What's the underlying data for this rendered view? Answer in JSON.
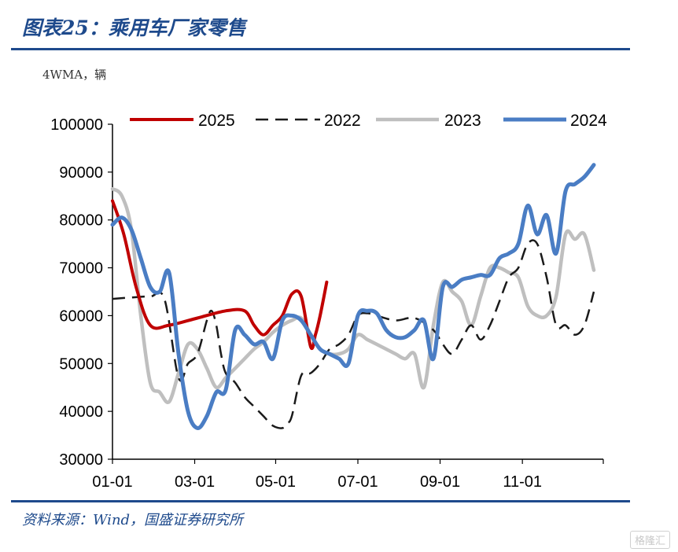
{
  "header": {
    "title": "图表25：乘用车厂家零售"
  },
  "unit_label": "4WMA，辆",
  "source": "资料来源：Wind，国盛证券研究所",
  "watermark": "格隆汇",
  "chart_data": {
    "type": "line",
    "title": "乘用车厂家零售",
    "ylim": [
      30000,
      100000
    ],
    "yticks": [
      30000,
      40000,
      50000,
      60000,
      70000,
      80000,
      90000,
      100000
    ],
    "ytick_labels": [
      "30000",
      "40000",
      "50000",
      "60000",
      "70000",
      "80000",
      "90000",
      "100000"
    ],
    "xlim": [
      1,
      53
    ],
    "xticks": [
      1,
      9.71,
      18.29,
      27,
      35.71,
      44.43
    ],
    "xtick_labels": [
      "01-01",
      "03-01",
      "05-01",
      "07-01",
      "09-01",
      "11-01"
    ],
    "grid": false,
    "legend": "top",
    "legend_order": [
      "2025",
      "2022",
      "2023",
      "2024"
    ],
    "series": [
      {
        "name": "2025",
        "color": "#c00000",
        "dash": "solid",
        "width": 4,
        "x": [
          1,
          2.2,
          3.5,
          5,
          7,
          10,
          13,
          15,
          16,
          17,
          18,
          19,
          20,
          21,
          22,
          22.5,
          23,
          23.7
        ],
        "y": [
          84000,
          77000,
          66000,
          58000,
          58000,
          59500,
          61000,
          61000,
          58000,
          56000,
          58000,
          60000,
          64500,
          64000,
          53500,
          56000,
          60000,
          67000
        ]
      },
      {
        "name": "2022",
        "color": "#1a1a1a",
        "dash": "dash",
        "width": 2.5,
        "x": [
          1,
          3,
          5,
          6.5,
          8,
          9,
          10,
          11,
          11.5,
          12,
          12.5,
          13,
          14,
          15,
          16,
          17,
          18,
          19,
          19.5,
          20,
          21,
          22,
          23,
          24,
          25,
          26,
          27,
          28,
          29,
          31,
          33,
          35,
          36,
          37,
          38,
          39,
          40,
          41,
          42,
          43,
          44,
          45,
          46,
          47,
          48,
          49,
          50,
          51,
          52
        ],
        "y": [
          63500,
          63800,
          64000,
          63500,
          47000,
          50000,
          52000,
          59000,
          61000,
          58000,
          52000,
          48000,
          46000,
          43000,
          41000,
          39000,
          37000,
          36500,
          37500,
          39000,
          47500,
          48000,
          50000,
          53000,
          54000,
          56000,
          60000,
          60500,
          60000,
          59000,
          59500,
          57000,
          54000,
          52000,
          55000,
          58000,
          55000,
          58000,
          63000,
          68000,
          70000,
          75000,
          75000,
          68000,
          58000,
          58000,
          56000,
          58000,
          65000
        ]
      },
      {
        "name": "2023",
        "color": "#bfbfbf",
        "dash": "solid",
        "width": 4.5,
        "x": [
          1,
          2,
          3,
          4,
          5,
          6,
          7,
          8,
          9,
          10,
          11,
          12,
          13,
          14,
          15,
          16,
          17,
          18,
          19,
          20,
          21,
          22,
          23,
          24,
          25,
          26,
          27,
          28,
          29,
          30,
          31,
          32,
          33,
          34,
          35,
          36,
          37,
          38,
          39,
          40,
          41,
          42,
          43,
          44,
          45,
          46,
          47,
          48,
          49,
          50,
          51,
          52
        ],
        "y": [
          86500,
          85000,
          78000,
          60000,
          46000,
          44000,
          42000,
          48000,
          54000,
          53000,
          49000,
          45000,
          47000,
          49000,
          51000,
          53000,
          54500,
          56500,
          58000,
          59000,
          59500,
          56000,
          53000,
          52000,
          52000,
          53000,
          56000,
          55000,
          54000,
          53000,
          52000,
          51000,
          52000,
          45000,
          58000,
          67000,
          65000,
          63000,
          58000,
          64000,
          70000,
          70000,
          69000,
          68000,
          62000,
          60000,
          60000,
          64000,
          77000,
          76000,
          77000,
          69500
        ]
      },
      {
        "name": "2024",
        "color": "#4a7dc4",
        "dash": "solid",
        "width": 5,
        "x": [
          1,
          2,
          3,
          4,
          5,
          6,
          7,
          8,
          9,
          10,
          11,
          12,
          13,
          14,
          15,
          16,
          17,
          18,
          19,
          20,
          21,
          22,
          23,
          24,
          25,
          26,
          27,
          28,
          29,
          30,
          31,
          32,
          33,
          34,
          35,
          36,
          37,
          38,
          39,
          40,
          41,
          42,
          43,
          44,
          45,
          46,
          47,
          48,
          49,
          50,
          51,
          52
        ],
        "y": [
          79000,
          80500,
          78000,
          72000,
          66000,
          65000,
          69000,
          52000,
          40000,
          36500,
          39000,
          44000,
          44500,
          57000,
          56000,
          54000,
          54500,
          51000,
          59000,
          60000,
          59000,
          56000,
          53000,
          52000,
          51000,
          50000,
          60000,
          61000,
          60500,
          57000,
          55500,
          55500,
          57000,
          59000,
          51000,
          66000,
          66000,
          67500,
          68000,
          68500,
          68500,
          72000,
          73000,
          75000,
          83000,
          77000,
          81000,
          73000,
          86000,
          87500,
          89000,
          91500
        ]
      }
    ]
  }
}
